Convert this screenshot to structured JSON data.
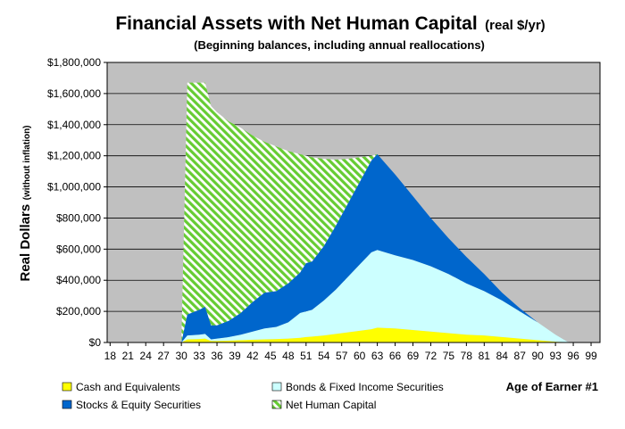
{
  "chart_data": {
    "type": "stacked-area",
    "title": "Financial Assets with Net Human Capital",
    "title_note": "(real $/yr)",
    "subtitle": "(Beginning balances, including annual reallocations)",
    "y_label": "Real Dollars",
    "y_label_note": "(without inflation)",
    "x_label": "Age of Earner #1",
    "x": [
      30,
      31,
      33,
      34,
      35,
      36,
      38,
      40,
      42,
      44,
      46,
      48,
      50,
      51,
      52,
      54,
      56,
      58,
      60,
      62,
      63,
      66,
      69,
      72,
      75,
      78,
      81,
      84,
      87,
      90,
      93,
      95,
      96
    ],
    "series": [
      {
        "name": "Cash and Equivalents",
        "color": "#ffff00",
        "values": [
          0,
          20000,
          22000,
          25000,
          10000,
          10000,
          12000,
          15000,
          18000,
          20000,
          22000,
          25000,
          30000,
          35000,
          38000,
          45000,
          55000,
          65000,
          75000,
          85000,
          95000,
          90000,
          80000,
          70000,
          60000,
          50000,
          45000,
          35000,
          25000,
          15000,
          5000,
          2000,
          0
        ]
      },
      {
        "name": "Bonds & Fixed Income Securities",
        "color": "#ccffff",
        "values": [
          0,
          25000,
          28000,
          30000,
          10000,
          15000,
          23000,
          35000,
          52000,
          70000,
          78000,
          105000,
          160000,
          165000,
          172000,
          225000,
          285000,
          355000,
          425000,
          495000,
          500000,
          470000,
          450000,
          420000,
          380000,
          330000,
          285000,
          235000,
          175000,
          115000,
          45000,
          3000,
          0
        ]
      },
      {
        "name": "Stocks & Equity Securities",
        "color": "#0066cc",
        "values": [
          0,
          135000,
          160000,
          175000,
          90000,
          85000,
          105000,
          140000,
          190000,
          230000,
          230000,
          250000,
          260000,
          310000,
          310000,
          350000,
          410000,
          470000,
          530000,
          590000,
          615000,
          520000,
          410000,
          310000,
          230000,
          170000,
          110000,
          50000,
          20000,
          0,
          0,
          0,
          0
        ]
      },
      {
        "name": "Net Human Capital",
        "color": "#66cc33",
        "hatched": true,
        "values": [
          0,
          1490000,
          1460000,
          1440000,
          1410000,
          1370000,
          1280000,
          1190000,
          1070000,
          970000,
          930000,
          850000,
          760000,
          690000,
          670000,
          560000,
          425000,
          290000,
          160000,
          30000,
          0,
          0,
          0,
          0,
          0,
          0,
          0,
          0,
          0,
          0,
          0,
          0,
          0
        ]
      }
    ],
    "xlim": [
      17.5,
      100.5
    ],
    "xticks": [
      18,
      21,
      24,
      27,
      30,
      33,
      36,
      39,
      42,
      45,
      48,
      51,
      54,
      57,
      60,
      63,
      66,
      69,
      72,
      75,
      78,
      81,
      84,
      87,
      90,
      93,
      96,
      99
    ],
    "ylim": [
      0,
      1800000
    ],
    "yticks": [
      {
        "value": 0,
        "label": "$0"
      },
      {
        "value": 200000,
        "label": "$200,000"
      },
      {
        "value": 400000,
        "label": "$400,000"
      },
      {
        "value": 600000,
        "label": "$600,000"
      },
      {
        "value": 800000,
        "label": "$800,000"
      },
      {
        "value": 1000000,
        "label": "$1,000,000"
      },
      {
        "value": 1200000,
        "label": "$1,200,000"
      },
      {
        "value": 1400000,
        "label": "$1,400,000"
      },
      {
        "value": 1600000,
        "label": "$1,600,000"
      },
      {
        "value": 1800000,
        "label": "$1,800,000"
      }
    ],
    "grid": true,
    "plot_background": "#c0c0c0"
  }
}
